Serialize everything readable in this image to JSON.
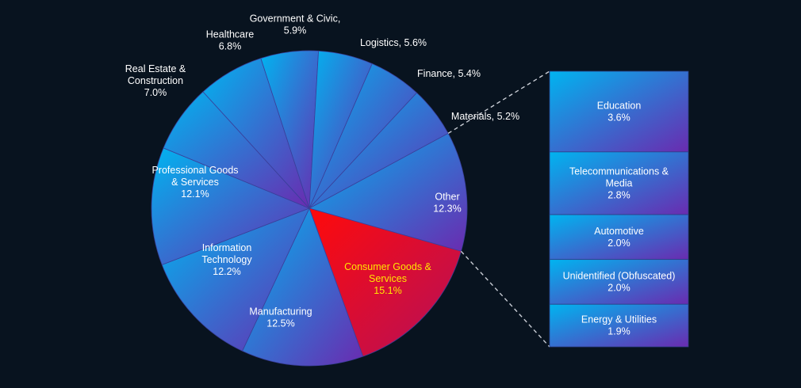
{
  "chart_data": {
    "type": "pie",
    "title": "",
    "highlight_color": "#ff1a1a",
    "highlight_label_color": "#ffe600",
    "label_color": "#ffffff",
    "background": "#08131f",
    "slices": [
      {
        "label": "Other",
        "value_label": "12.3%",
        "value": 12.3,
        "breakout": true
      },
      {
        "label": "Consumer Goods & Services",
        "value_label": "15.1%",
        "value": 15.1,
        "highlight": true
      },
      {
        "label": "Manufacturing",
        "value_label": "12.5%",
        "value": 12.5
      },
      {
        "label": "Information Technology",
        "value_label": "12.2%",
        "value": 12.2
      },
      {
        "label": "Professional Goods & Services",
        "value_label": "12.1%",
        "value": 12.1
      },
      {
        "label": "Real Estate & Construction",
        "value_label": "7.0%",
        "value": 7.0
      },
      {
        "label": "Healthcare",
        "value_label": "6.8%",
        "value": 6.8
      },
      {
        "label": "Government & Civic,",
        "value_label": "5.9%",
        "value": 5.9
      },
      {
        "label": "Logistics,",
        "value_label": "5.6%",
        "value": 5.6
      },
      {
        "label": "Finance,",
        "value_label": "5.4%",
        "value": 5.4
      },
      {
        "label": "Materials,",
        "value_label": "5.2%",
        "value": 5.2
      }
    ],
    "breakout": [
      {
        "label": "Education",
        "value_label": "3.6%",
        "value": 3.6
      },
      {
        "label": "Telecommunications & Media",
        "value_label": "2.8%",
        "value": 2.8
      },
      {
        "label": "Automotive",
        "value_label": "2.0%",
        "value": 2.0
      },
      {
        "label": "Unidentified (Obfuscated)",
        "value_label": "2.0%",
        "value": 2.0
      },
      {
        "label": "Energy & Utilities",
        "value_label": "1.9%",
        "value": 1.9
      }
    ]
  }
}
